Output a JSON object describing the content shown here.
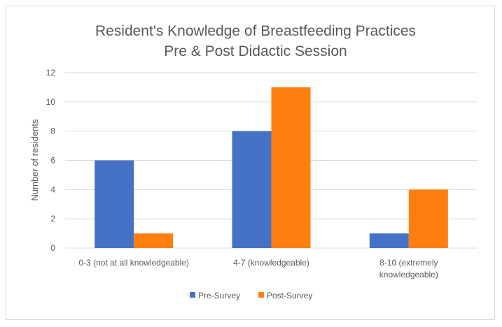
{
  "chart_data": {
    "type": "bar",
    "title": [
      "Resident's Knowledge of Breastfeeding Practices",
      "Pre & Post Didactic Session"
    ],
    "xlabel": "",
    "ylabel": "Number of residents",
    "ylim": [
      0,
      12
    ],
    "yticks": [
      0,
      2,
      4,
      6,
      8,
      10,
      12
    ],
    "grid": true,
    "legend_position": "bottom",
    "categories": [
      [
        "0-3 (not at all knowledgeable)"
      ],
      [
        "4-7 (knowledgeable)"
      ],
      [
        "8-10 (extremely",
        "knowledgeable)"
      ]
    ],
    "series": [
      {
        "name": "Pre-Survey",
        "color": "#4472c4",
        "values": [
          6,
          8,
          1
        ]
      },
      {
        "name": "Post-Survey",
        "color": "#ff7f0e",
        "values": [
          1,
          11,
          4
        ]
      }
    ]
  }
}
